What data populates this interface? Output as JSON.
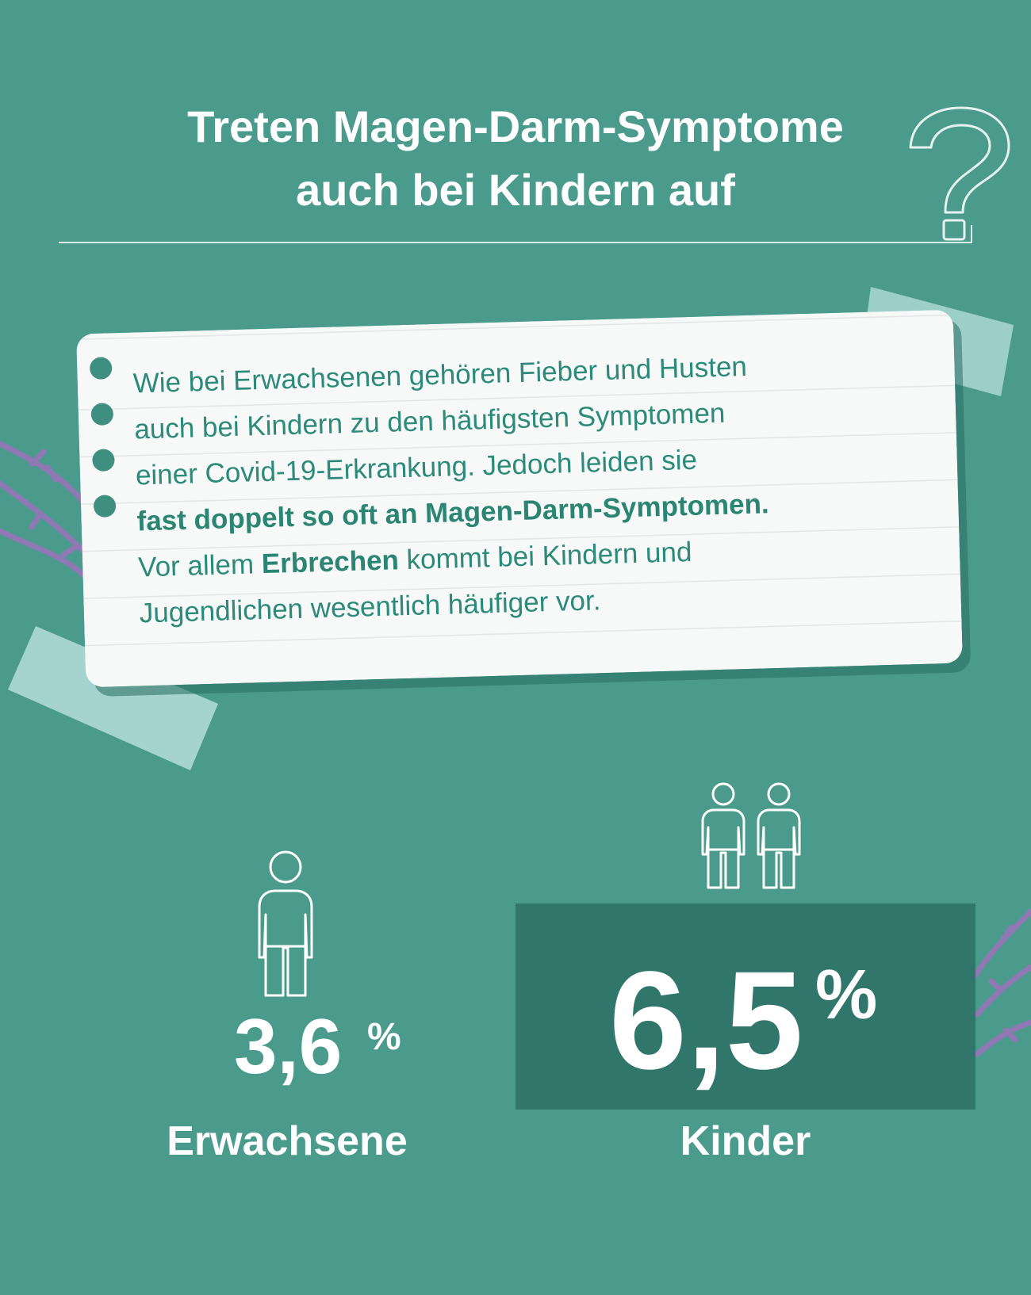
{
  "title": {
    "line1": "Treten Magen-Darm-Symptome",
    "line2": "auch bei Kindern auf"
  },
  "note": {
    "lines": [
      {
        "segments": [
          {
            "text": "Wie bei Erwachsenen gehören Fieber und Husten",
            "bold": false
          }
        ]
      },
      {
        "segments": [
          {
            "text": "auch bei Kindern zu den häufigsten Symptomen",
            "bold": false
          }
        ]
      },
      {
        "segments": [
          {
            "text": "einer Covid-19-Erkrankung. Jedoch leiden sie",
            "bold": false
          }
        ]
      },
      {
        "segments": [
          {
            "text": "fast doppelt so oft an Magen-Darm-Symptomen.",
            "bold": true
          }
        ]
      },
      {
        "segments": [
          {
            "text": "Vor allem ",
            "bold": false
          },
          {
            "text": "Erbrechen",
            "bold": true
          },
          {
            "text": " kommt bei Kindern und",
            "bold": false
          }
        ]
      },
      {
        "segments": [
          {
            "text": "Jugendlichen wesentlich häufiger vor.",
            "bold": false
          }
        ]
      }
    ]
  },
  "stats": {
    "adults": {
      "value": "3,6",
      "unit": "%",
      "label": "Erwachsene"
    },
    "children": {
      "value": "6,5",
      "unit": "%",
      "label": "Kinder"
    }
  },
  "icons": {
    "question": "question-mark-icon",
    "adult": "person-icon",
    "children": "two-children-icon"
  },
  "colors": {
    "background": "#4b9b8c",
    "highlight_box": "#31766b",
    "note_text": "#2b8a78",
    "note_paper": "#f7f8f8",
    "tape": "#b8e0de",
    "vine": "#8f78b3"
  }
}
